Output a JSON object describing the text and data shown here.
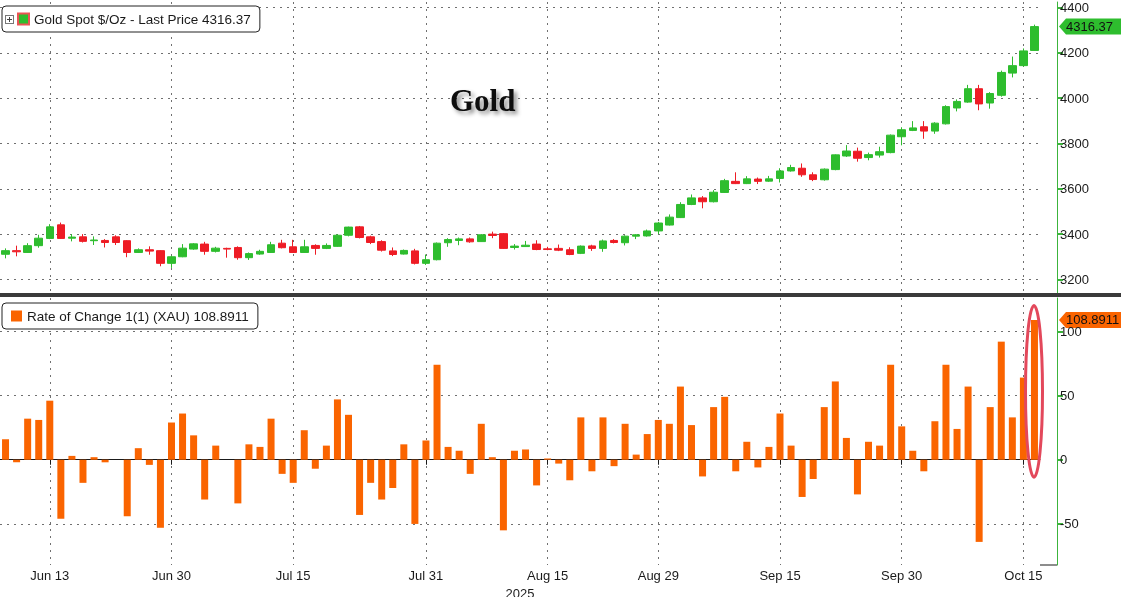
{
  "chart_data": [
    {
      "type": "candlestick",
      "title": "Gold",
      "categories": [
        null,
        null,
        null,
        null,
        null,
        null,
        null,
        null,
        null,
        null,
        null,
        null,
        null,
        null,
        null,
        null,
        null,
        null,
        null,
        null,
        null,
        null,
        null,
        null,
        null,
        null,
        null,
        null,
        null,
        null,
        null,
        null,
        null,
        null,
        null,
        null,
        null,
        null,
        null,
        null,
        null,
        null,
        null,
        null,
        null,
        null,
        null,
        null,
        null,
        null,
        null,
        null,
        null,
        null,
        null,
        null,
        null,
        null,
        null,
        null,
        null,
        null,
        null,
        null,
        null,
        null,
        null,
        null,
        null,
        null,
        null,
        null,
        null,
        null,
        null,
        null,
        null,
        null,
        null,
        null,
        null,
        null,
        null,
        null,
        null,
        null,
        null,
        null,
        null,
        null,
        null,
        null,
        null,
        null
      ],
      "series": [
        {
          "name": "Gold Spot $/Oz - Last Price 4316.37",
          "color": "#2ebd2e",
          "colors": [
            "#2ebd2e",
            "#ee1c25",
            "#2ebd2e",
            "#2ebd2e",
            "#2ebd2e",
            "#ee1c25",
            "#2ebd2e",
            "#ee1c25",
            "#2ebd2e",
            "#ee1c25",
            "#ee1c25",
            "#ee1c25",
            "#2ebd2e",
            "#ee1c25",
            "#ee1c25",
            "#2ebd2e",
            "#2ebd2e",
            "#2ebd2e",
            "#ee1c25",
            "#2ebd2e",
            "#ee1c25",
            "#ee1c25",
            "#2ebd2e",
            "#2ebd2e",
            "#2ebd2e",
            "#ee1c25",
            "#ee1c25",
            "#2ebd2e",
            "#ee1c25",
            "#2ebd2e",
            "#2ebd2e",
            "#2ebd2e",
            "#ee1c25",
            "#ee1c25",
            "#ee1c25",
            "#ee1c25",
            "#2ebd2e",
            "#ee1c25",
            "#2ebd2e",
            "#2ebd2e",
            "#2ebd2e",
            "#2ebd2e",
            "#ee1c25",
            "#2ebd2e",
            "#ee1c25",
            "#ee1c25",
            "#2ebd2e",
            "#2ebd2e",
            "#ee1c25",
            "#ee1c25",
            "#ee1c25",
            "#ee1c25",
            "#2ebd2e",
            "#ee1c25",
            "#2ebd2e",
            "#ee1c25",
            "#2ebd2e",
            "#2ebd2e",
            "#2ebd2e",
            "#2ebd2e",
            "#2ebd2e",
            "#2ebd2e",
            "#2ebd2e",
            "#ee1c25",
            "#2ebd2e",
            "#2ebd2e",
            "#ee1c25",
            "#2ebd2e",
            "#ee1c25",
            "#2ebd2e",
            "#2ebd2e",
            "#2ebd2e",
            "#ee1c25",
            "#ee1c25",
            "#2ebd2e",
            "#2ebd2e",
            "#2ebd2e",
            "#ee1c25",
            "#2ebd2e",
            "#2ebd2e",
            "#2ebd2e",
            "#2ebd2e",
            "#2ebd2e",
            "#ee1c25",
            "#2ebd2e",
            "#2ebd2e",
            "#2ebd2e",
            "#2ebd2e",
            "#ee1c25",
            "#2ebd2e",
            "#2ebd2e",
            "#2ebd2e",
            "#2ebd2e",
            "#2ebd2e"
          ],
          "ohlc": [
            [
              3311,
              3337,
              3293,
              3327
            ],
            [
              3327,
              3349,
              3302,
              3322
            ],
            [
              3319,
              3360,
              3317,
              3349
            ],
            [
              3349,
              3397,
              3340,
              3382
            ],
            [
              3381,
              3444,
              3378,
              3432
            ],
            [
              3441,
              3451,
              3379,
              3381
            ],
            [
              3382,
              3400,
              3368,
              3387
            ],
            [
              3388,
              3400,
              3363,
              3368
            ],
            [
              3371,
              3390,
              3352,
              3374
            ],
            [
              3372,
              3378,
              3341,
              3363
            ],
            [
              3388,
              3395,
              3352,
              3363
            ],
            [
              3371,
              3373,
              3298,
              3319
            ],
            [
              3319,
              3337,
              3317,
              3331
            ],
            [
              3331,
              3346,
              3309,
              3325
            ],
            [
              3327,
              3329,
              3258,
              3271
            ],
            [
              3271,
              3305,
              3251,
              3300
            ],
            [
              3300,
              3356,
              3298,
              3338
            ],
            [
              3334,
              3360,
              3331,
              3357
            ],
            [
              3356,
              3366,
              3309,
              3324
            ],
            [
              3324,
              3344,
              3319,
              3338
            ],
            [
              3337,
              3340,
              3296,
              3334
            ],
            [
              3341,
              3346,
              3287,
              3296
            ],
            [
              3296,
              3319,
              3286,
              3314
            ],
            [
              3312,
              3331,
              3309,
              3324
            ],
            [
              3319,
              3366,
              3317,
              3353
            ],
            [
              3360,
              3375,
              3337,
              3340
            ],
            [
              3344,
              3375,
              3317,
              3319
            ],
            [
              3319,
              3375,
              3318,
              3344
            ],
            [
              3350,
              3355,
              3309,
              3337
            ],
            [
              3337,
              3359,
              3334,
              3350
            ],
            [
              3346,
              3400,
              3344,
              3395
            ],
            [
              3395,
              3433,
              3390,
              3431
            ],
            [
              3432,
              3436,
              3381,
              3385
            ],
            [
              3388,
              3393,
              3356,
              3363
            ],
            [
              3367,
              3373,
              3323,
              3329
            ],
            [
              3326,
              3341,
              3303,
              3310
            ],
            [
              3312,
              3332,
              3310,
              3328
            ],
            [
              3326,
              3335,
              3266,
              3271
            ],
            [
              3271,
              3310,
              3264,
              3287
            ],
            [
              3287,
              3363,
              3284,
              3360
            ],
            [
              3362,
              3382,
              3344,
              3376
            ],
            [
              3372,
              3385,
              3351,
              3379
            ],
            [
              3379,
              3385,
              3362,
              3366
            ],
            [
              3367,
              3400,
              3366,
              3397
            ],
            [
              3400,
              3411,
              3382,
              3394
            ],
            [
              3402,
              3405,
              3335,
              3337
            ],
            [
              3341,
              3356,
              3332,
              3347
            ],
            [
              3345,
              3370,
              3344,
              3351
            ],
            [
              3356,
              3373,
              3329,
              3332
            ],
            [
              3335,
              3344,
              3329,
              3332
            ],
            [
              3337,
              3354,
              3325,
              3329
            ],
            [
              3331,
              3342,
              3307,
              3310
            ],
            [
              3315,
              3350,
              3312,
              3347
            ],
            [
              3348,
              3353,
              3326,
              3337
            ],
            [
              3337,
              3376,
              3322,
              3370
            ],
            [
              3372,
              3378,
              3359,
              3363
            ],
            [
              3362,
              3395,
              3350,
              3391
            ],
            [
              3391,
              3400,
              3378,
              3397
            ],
            [
              3392,
              3420,
              3389,
              3414
            ],
            [
              3414,
              3454,
              3400,
              3449
            ],
            [
              3440,
              3487,
              3438,
              3475
            ],
            [
              3473,
              3541,
              3471,
              3531
            ],
            [
              3531,
              3575,
              3528,
              3560
            ],
            [
              3560,
              3568,
              3514,
              3543
            ],
            [
              3543,
              3594,
              3540,
              3585
            ],
            [
              3584,
              3644,
              3582,
              3636
            ],
            [
              3633,
              3673,
              3621,
              3623
            ],
            [
              3623,
              3656,
              3621,
              3644
            ],
            [
              3643,
              3650,
              3621,
              3633
            ],
            [
              3634,
              3657,
              3631,
              3644
            ],
            [
              3646,
              3691,
              3628,
              3679
            ],
            [
              3679,
              3706,
              3676,
              3694
            ],
            [
              3691,
              3712,
              3653,
              3662
            ],
            [
              3662,
              3673,
              3634,
              3641
            ],
            [
              3640,
              3690,
              3636,
              3687
            ],
            [
              3685,
              3752,
              3682,
              3750
            ],
            [
              3745,
              3793,
              3741,
              3767
            ],
            [
              3766,
              3782,
              3720,
              3735
            ],
            [
              3738,
              3760,
              3726,
              3751
            ],
            [
              3749,
              3786,
              3738,
              3764
            ],
            [
              3760,
              3840,
              3757,
              3837
            ],
            [
              3830,
              3872,
              3792,
              3861
            ],
            [
              3858,
              3899,
              3855,
              3869
            ],
            [
              3874,
              3899,
              3821,
              3855
            ],
            [
              3855,
              3894,
              3843,
              3890
            ],
            [
              3887,
              3969,
              3884,
              3963
            ],
            [
              3957,
              3995,
              3942,
              3986
            ],
            [
              3983,
              4059,
              3980,
              4042
            ],
            [
              4042,
              4059,
              3947,
              3975
            ],
            [
              3979,
              4027,
              3954,
              4021
            ],
            [
              4013,
              4122,
              4007,
              4114
            ],
            [
              4111,
              4184,
              4092,
              4144
            ],
            [
              4144,
              4220,
              4140,
              4209
            ],
            [
              4211,
              4325,
              4209,
              4316.37
            ]
          ]
        }
      ],
      "ylim": [
        3140,
        4425
      ],
      "yticks": [
        3200,
        3400,
        3600,
        3800,
        4000,
        4200,
        4400
      ],
      "grid": true,
      "legend": "top left",
      "tick_labels": "y",
      "annotations": [
        "4316.37"
      ]
    },
    {
      "type": "bar",
      "xlabel": "2025",
      "categories": [
        null,
        null,
        null,
        null,
        "Jun 13",
        null,
        null,
        null,
        null,
        null,
        null,
        null,
        null,
        null,
        null,
        "Jun 30",
        null,
        null,
        null,
        null,
        null,
        null,
        null,
        null,
        null,
        null,
        "Jul 15",
        null,
        null,
        null,
        null,
        null,
        null,
        null,
        null,
        null,
        null,
        null,
        "Jul 31",
        null,
        null,
        null,
        null,
        null,
        null,
        null,
        null,
        null,
        null,
        "Aug 15",
        null,
        null,
        null,
        null,
        null,
        null,
        null,
        null,
        null,
        "Aug 29",
        null,
        null,
        null,
        null,
        null,
        null,
        null,
        null,
        null,
        null,
        "Sep 15",
        null,
        null,
        null,
        null,
        null,
        null,
        null,
        null,
        null,
        null,
        "Sep 30",
        null,
        null,
        null,
        null,
        null,
        null,
        null,
        null,
        null,
        null,
        "Oct 15",
        null
      ],
      "series": [
        {
          "name": "Rate of Change 1(1) (XAU) 108.8911",
          "color": "#fa6400",
          "values": [
            16,
            -2,
            32,
            31,
            46,
            -46,
            3,
            -18,
            2,
            -2,
            0,
            -44,
            9,
            -4,
            -53,
            29,
            36,
            19,
            -31,
            11,
            0,
            -34,
            12,
            10,
            32,
            -11,
            -18,
            23,
            -7,
            11,
            47,
            35,
            -43,
            -18,
            -31,
            -22,
            12,
            -50,
            15,
            74,
            10,
            7,
            -11,
            28,
            2,
            -55,
            7,
            8,
            -20,
            1,
            -3,
            -16,
            33,
            -9,
            33,
            -5,
            28,
            4,
            20,
            31,
            28,
            57,
            27,
            -13,
            41,
            49,
            -9,
            14,
            -6,
            10,
            36,
            11,
            -29,
            -15,
            41,
            61,
            17,
            -27,
            14,
            11,
            74,
            26,
            7,
            -9,
            30,
            74,
            24,
            57,
            -64,
            41,
            92,
            33,
            64,
            108.8911
          ]
        }
      ],
      "ylim": [
        -82,
        126
      ],
      "yticks": [
        -50,
        0,
        50,
        100
      ],
      "grid": true,
      "legend": "top left",
      "annotations": [
        "108.8911"
      ]
    }
  ]
}
